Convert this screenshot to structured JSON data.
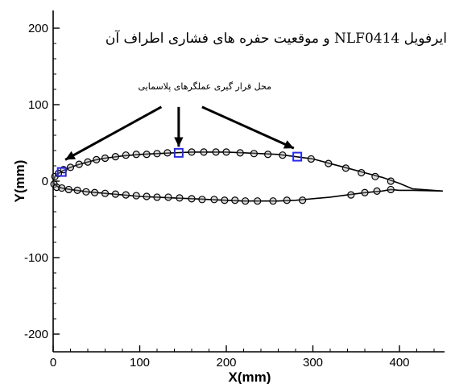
{
  "chart_data": {
    "type": "scatter",
    "title": "ایرفویل NLF0414 و موقعیت حفره های فشاری اطراف آن",
    "xlabel": "X(mm)",
    "ylabel": "Y(mm)",
    "xlim": [
      0,
      450
    ],
    "ylim": [
      -220,
      220
    ],
    "x_ticks": [
      0,
      100,
      200,
      300,
      400
    ],
    "y_ticks": [
      200,
      100,
      0,
      -100,
      -200
    ],
    "annotation": "محل قرار گیری عملگرهای پلاسمایی",
    "grid": false,
    "series": [
      {
        "kind": "line",
        "values": [
          [
            0,
            0
          ],
          [
            2,
            6
          ],
          [
            5,
            9
          ],
          [
            10,
            13
          ],
          [
            20,
            18
          ],
          [
            30,
            22
          ],
          [
            40,
            25
          ],
          [
            50,
            28
          ],
          [
            60,
            30
          ],
          [
            80,
            33
          ],
          [
            100,
            35
          ],
          [
            120,
            36
          ],
          [
            140,
            37
          ],
          [
            160,
            38
          ],
          [
            180,
            38
          ],
          [
            200,
            38
          ],
          [
            220,
            37
          ],
          [
            240,
            36
          ],
          [
            260,
            35
          ],
          [
            280,
            32
          ],
          [
            300,
            29
          ],
          [
            320,
            23
          ],
          [
            340,
            17
          ],
          [
            360,
            11
          ],
          [
            380,
            5
          ],
          [
            400,
            -3
          ],
          [
            415,
            -10
          ],
          [
            450,
            -13
          ]
        ]
      },
      {
        "kind": "line",
        "values": [
          [
            0,
            0
          ],
          [
            2,
            -5
          ],
          [
            5,
            -7
          ],
          [
            10,
            -9
          ],
          [
            20,
            -11
          ],
          [
            40,
            -14
          ],
          [
            60,
            -16
          ],
          [
            80,
            -18
          ],
          [
            100,
            -20
          ],
          [
            120,
            -21
          ],
          [
            140,
            -22
          ],
          [
            160,
            -23
          ],
          [
            180,
            -24
          ],
          [
            200,
            -25
          ],
          [
            220,
            -26
          ],
          [
            240,
            -26
          ],
          [
            260,
            -26
          ],
          [
            280,
            -25
          ],
          [
            300,
            -23
          ],
          [
            320,
            -21
          ],
          [
            340,
            -18
          ],
          [
            360,
            -15
          ],
          [
            380,
            -13
          ],
          [
            390,
            -11
          ],
          [
            400,
            -12
          ],
          [
            415,
            -12
          ],
          [
            450,
            -13
          ]
        ]
      },
      {
        "kind": "markers",
        "marker": "circle",
        "values": [
          [
            2,
            6
          ],
          [
            6,
            10
          ],
          [
            12,
            15
          ],
          [
            20,
            18
          ],
          [
            30,
            22
          ],
          [
            40,
            25
          ],
          [
            50,
            28
          ],
          [
            60,
            30
          ],
          [
            72,
            32
          ],
          [
            84,
            34
          ],
          [
            96,
            35
          ],
          [
            108,
            35
          ],
          [
            120,
            36
          ],
          [
            132,
            37
          ],
          [
            160,
            38
          ],
          [
            174,
            38
          ],
          [
            188,
            38
          ],
          [
            200,
            38
          ],
          [
            216,
            37
          ],
          [
            232,
            36
          ],
          [
            248,
            35
          ],
          [
            265,
            34
          ],
          [
            298,
            29
          ],
          [
            318,
            23
          ],
          [
            338,
            17
          ],
          [
            356,
            11
          ],
          [
            372,
            6
          ],
          [
            390,
            0
          ],
          [
            1,
            -4
          ],
          [
            4,
            -8
          ],
          [
            10,
            -9
          ],
          [
            18,
            -11
          ],
          [
            28,
            -12
          ],
          [
            38,
            -14
          ],
          [
            48,
            -15
          ],
          [
            60,
            -16
          ],
          [
            72,
            -17
          ],
          [
            84,
            -18
          ],
          [
            96,
            -19
          ],
          [
            108,
            -20
          ],
          [
            120,
            -21
          ],
          [
            133,
            -21
          ],
          [
            146,
            -22
          ],
          [
            160,
            -23
          ],
          [
            172,
            -24
          ],
          [
            186,
            -24
          ],
          [
            198,
            -25
          ],
          [
            210,
            -25
          ],
          [
            222,
            -26
          ],
          [
            236,
            -26
          ],
          [
            254,
            -26
          ],
          [
            270,
            -25
          ],
          [
            288,
            -25
          ],
          [
            344,
            -18
          ],
          [
            360,
            -15
          ],
          [
            374,
            -13
          ],
          [
            390,
            -11
          ]
        ]
      },
      {
        "kind": "markers",
        "marker": "square",
        "color": "#2a2ae6",
        "values": [
          [
            10,
            12
          ],
          [
            145,
            37
          ],
          [
            282,
            32
          ]
        ]
      }
    ],
    "arrows": [
      {
        "from": [
          125,
          97
        ],
        "to": [
          14,
          28
        ]
      },
      {
        "from": [
          145,
          97
        ],
        "to": [
          145,
          45
        ]
      },
      {
        "from": [
          172,
          97
        ],
        "to": [
          278,
          43
        ]
      }
    ]
  },
  "colors": {
    "line": "#000000",
    "marker_fill": "#9e9e9e",
    "accent": "#2a2ae6"
  }
}
